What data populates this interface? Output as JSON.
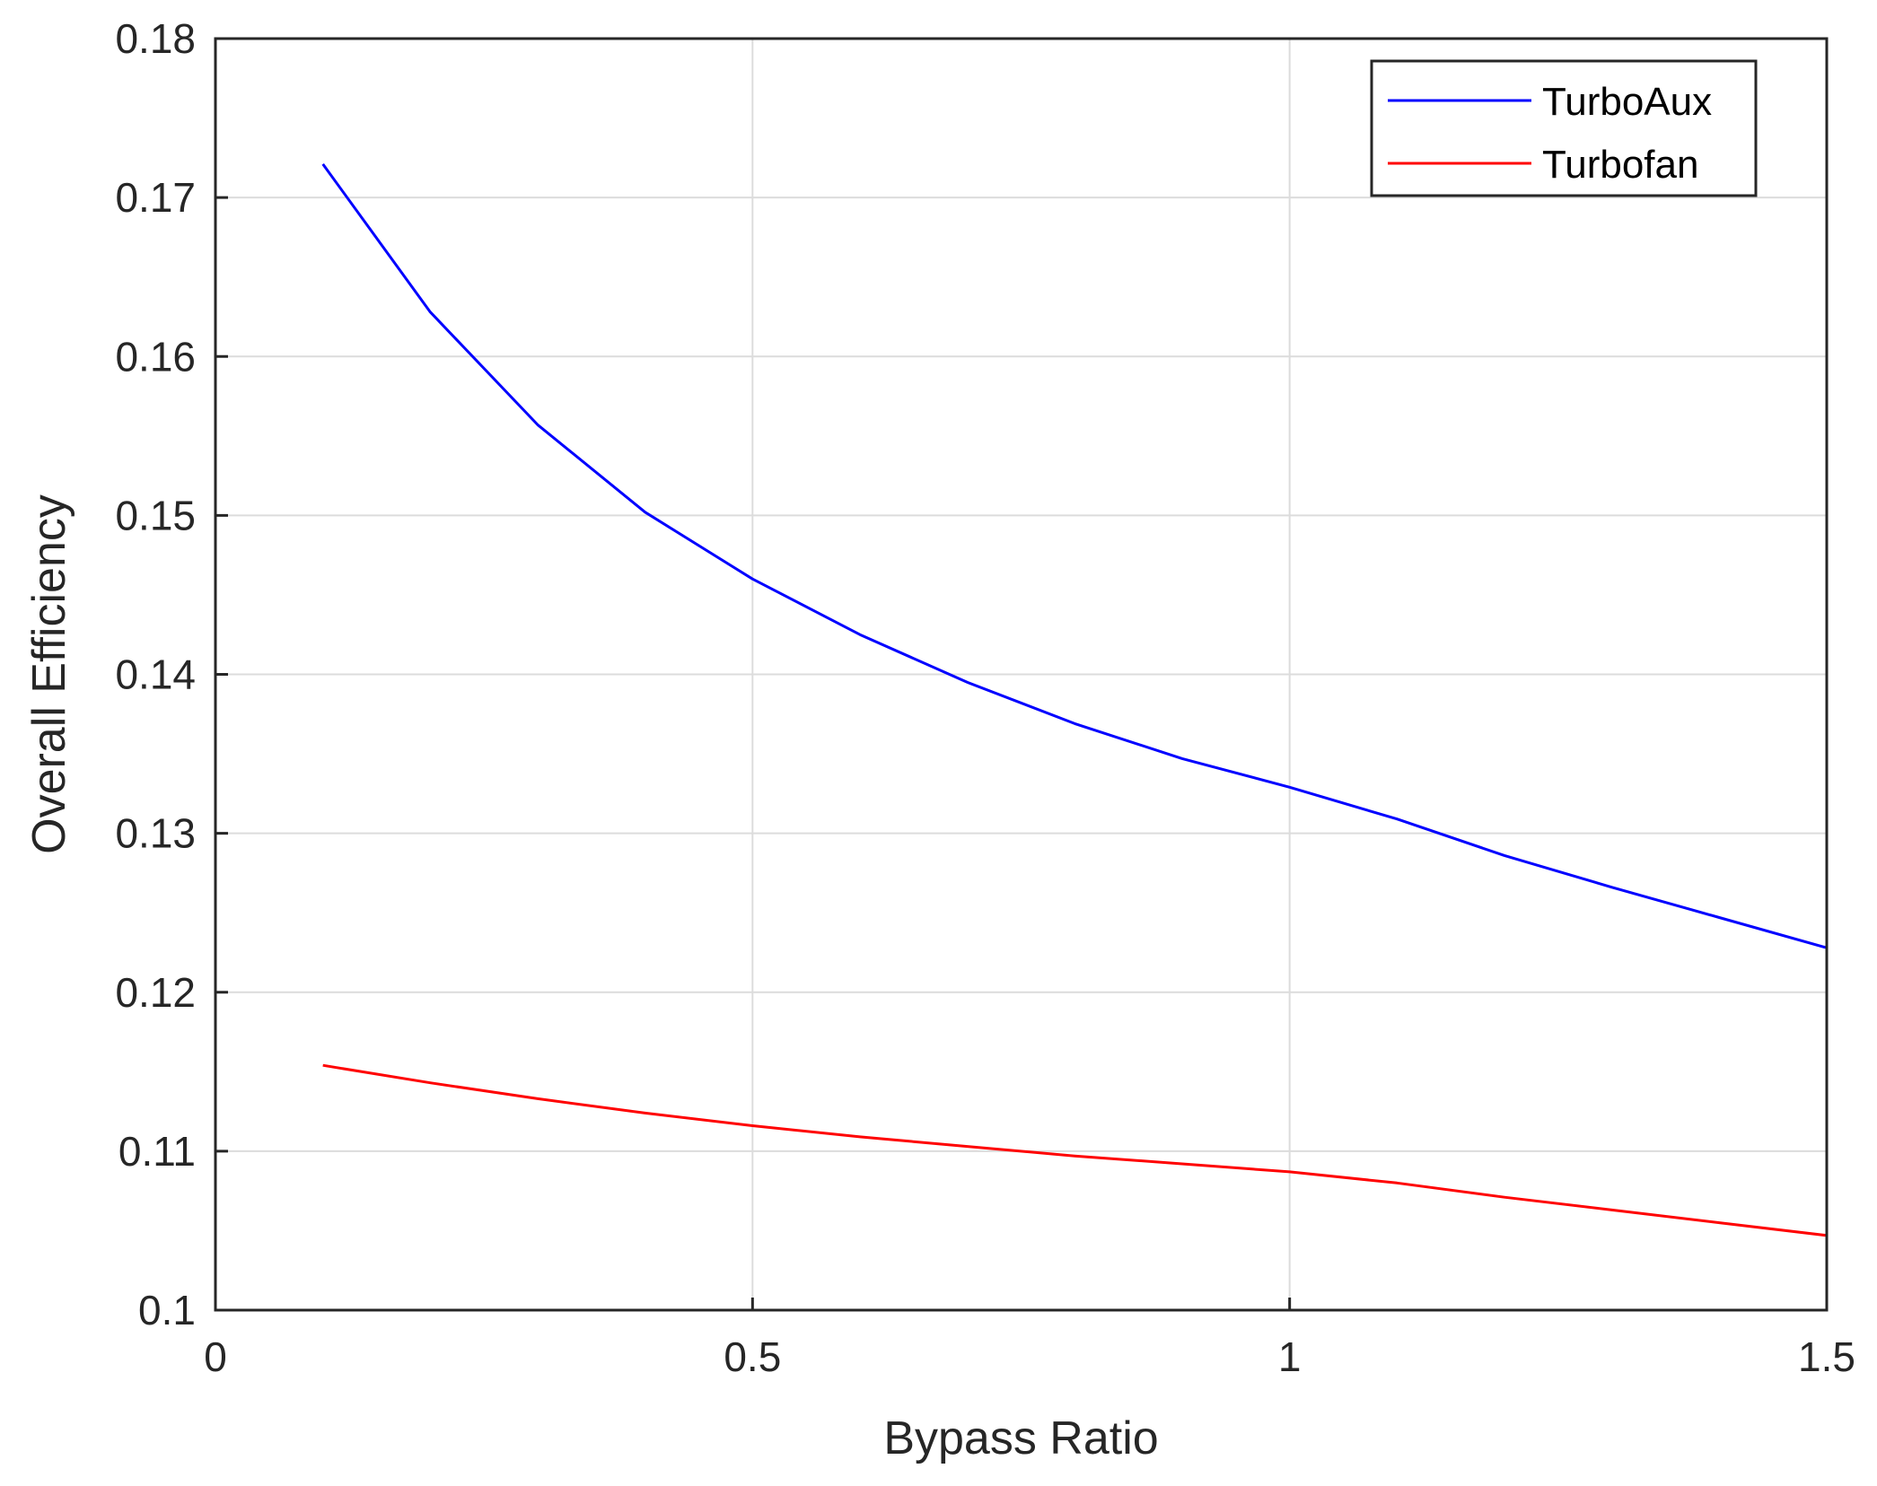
{
  "chart_data": {
    "type": "line",
    "title": "",
    "xlabel": "Bypass Ratio",
    "ylabel": "Overall Efficiency",
    "xlim": [
      0,
      1.5
    ],
    "ylim": [
      0.1,
      0.18
    ],
    "x_ticks": [
      0,
      0.5,
      1,
      1.5
    ],
    "x_tick_labels": [
      "0",
      "0.5",
      "1",
      "1.5"
    ],
    "y_ticks": [
      0.1,
      0.11,
      0.12,
      0.13,
      0.14,
      0.15,
      0.16,
      0.17,
      0.18
    ],
    "y_tick_labels": [
      "0.1",
      "0.11",
      "0.12",
      "0.13",
      "0.14",
      "0.15",
      "0.16",
      "0.17",
      "0.18"
    ],
    "grid": true,
    "legend_position": "top-right",
    "series": [
      {
        "name": "TurboAux",
        "color": "#0000ff",
        "x": [
          0.1,
          0.2,
          0.3,
          0.4,
          0.5,
          0.6,
          0.7,
          0.8,
          0.9,
          1.0,
          1.1,
          1.2,
          1.3,
          1.4,
          1.5
        ],
        "y": [
          0.1721,
          0.1628,
          0.1557,
          0.1502,
          0.146,
          0.1425,
          0.1395,
          0.1369,
          0.1347,
          0.1329,
          0.1309,
          0.1286,
          0.1266,
          0.1247,
          0.1228
        ]
      },
      {
        "name": "Turbofan",
        "color": "#ff0000",
        "x": [
          0.1,
          0.2,
          0.3,
          0.4,
          0.5,
          0.6,
          0.7,
          0.8,
          0.9,
          1.0,
          1.1,
          1.2,
          1.3,
          1.4,
          1.5
        ],
        "y": [
          0.1154,
          0.1143,
          0.1133,
          0.1124,
          0.1116,
          0.1109,
          0.1103,
          0.1097,
          0.1092,
          0.1087,
          0.108,
          0.1071,
          0.1063,
          0.1055,
          0.1047
        ]
      }
    ]
  }
}
